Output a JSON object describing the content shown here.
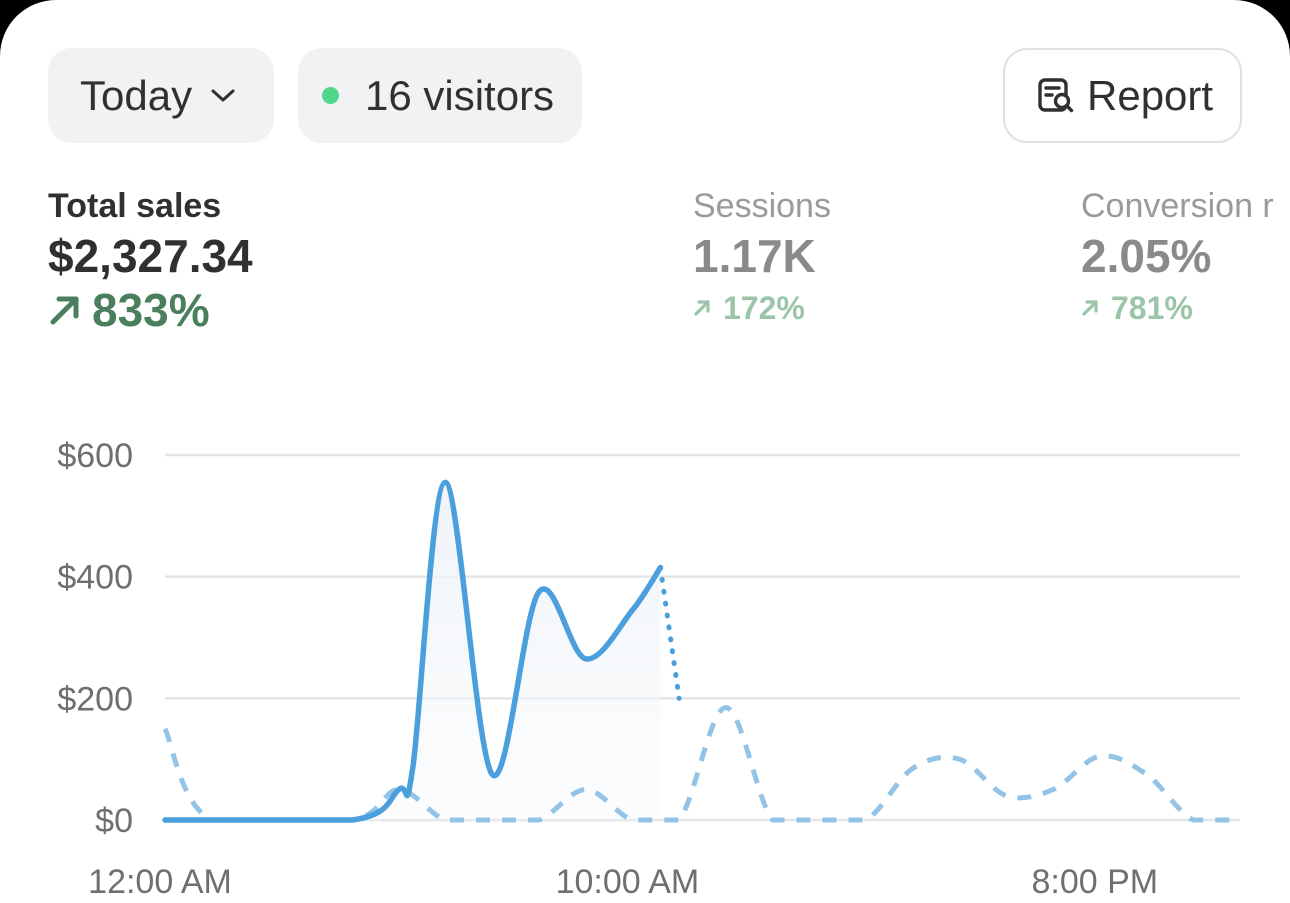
{
  "filters": {
    "date_range": "Today",
    "visitors": "16 visitors",
    "live_dot_color": "#4fd68a"
  },
  "toolbar": {
    "report_label": "Report"
  },
  "metrics": {
    "total_sales": {
      "label": "Total sales",
      "value": "$2,327.34",
      "change": "833%"
    },
    "sessions": {
      "label": "Sessions",
      "value": "1.17K",
      "change": "172%"
    },
    "conversion": {
      "label": "Conversion r",
      "value": "2.05%",
      "change": "781%"
    }
  },
  "chart_data": {
    "type": "line",
    "y_ticks": [
      "$600",
      "$400",
      "$200",
      "$0"
    ],
    "x_ticks": [
      "12:00 AM",
      "10:00 AM",
      "8:00 PM"
    ],
    "ylim": [
      0,
      600
    ],
    "grid": true,
    "colors": {
      "current": "#4a9fdc",
      "comparison": "#93c3e6"
    },
    "series": [
      {
        "style": "solid",
        "x_hours": [
          0,
          4,
          5,
          5.3,
          6,
          7,
          8,
          9,
          10,
          10.6
        ],
        "values": [
          0,
          0,
          50,
          85,
          555,
          75,
          375,
          265,
          345,
          415
        ]
      },
      {
        "style": "dotted",
        "x_hours": [
          10.6,
          11
        ],
        "values": [
          415,
          200
        ]
      },
      {
        "style": "dashed",
        "x_hours": [
          0,
          1,
          4,
          5,
          6,
          7,
          8,
          9,
          10,
          11,
          12,
          13,
          14,
          15,
          16,
          17,
          18,
          19,
          20,
          21,
          22,
          23
        ],
        "values": [
          150,
          0,
          0,
          50,
          0,
          0,
          0,
          50,
          0,
          0,
          185,
          0,
          0,
          0,
          85,
          100,
          40,
          50,
          105,
          75,
          0,
          0
        ]
      }
    ]
  }
}
